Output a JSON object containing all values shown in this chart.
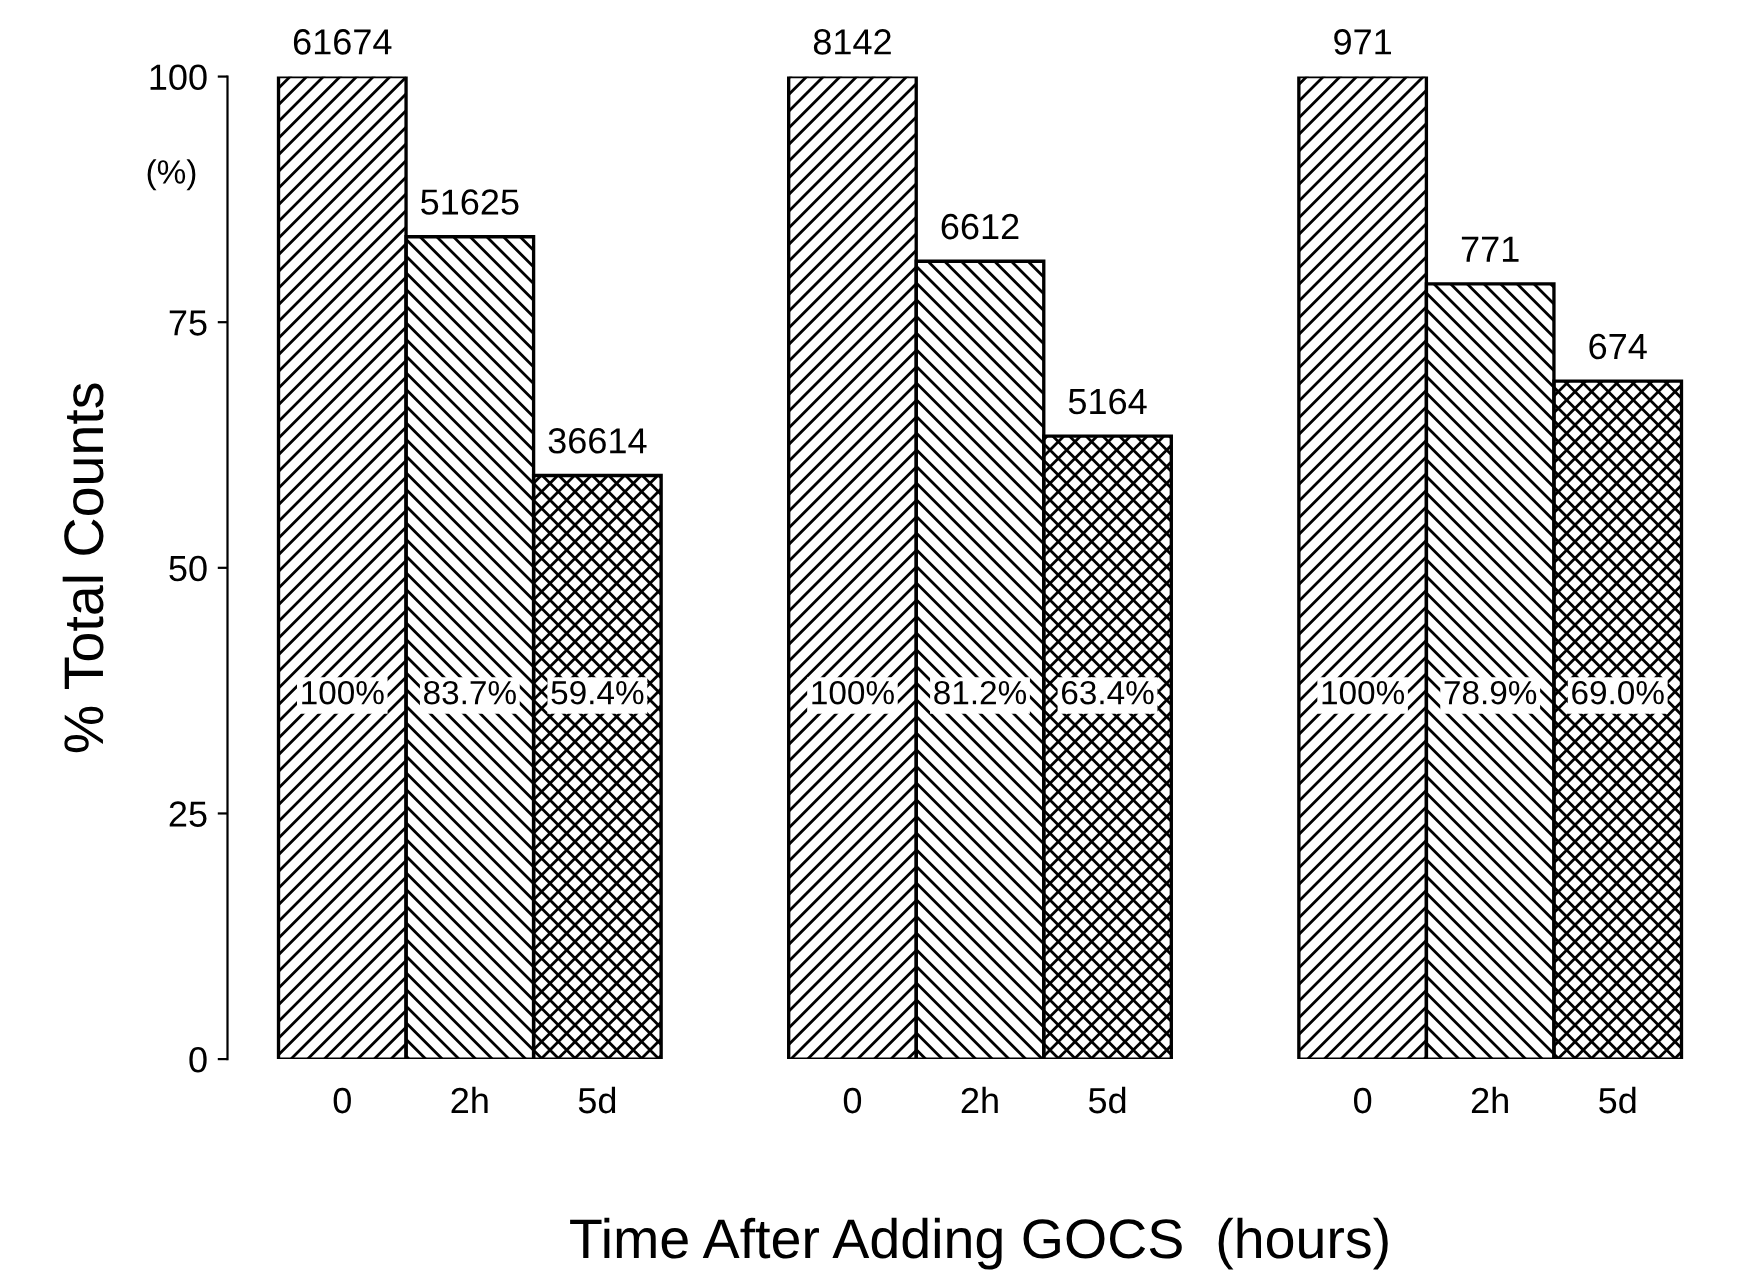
{
  "chart_data": {
    "type": "bar",
    "categories": [
      "0",
      "2h",
      "5d",
      null,
      "0",
      "2h",
      "5d",
      null,
      "0",
      "2h",
      "5d"
    ],
    "values": [
      100,
      83.7,
      59.4,
      null,
      100,
      81.2,
      63.4,
      null,
      100,
      78.9,
      69.0
    ],
    "value_labels": [
      "100%",
      "83.7%",
      "59.4%",
      null,
      "100%",
      "81.2%",
      "63.4%",
      null,
      "100%",
      "78.9%",
      "69.0%"
    ],
    "color": "#000000",
    "annotations": [
      "61674",
      "51625",
      "36614",
      "8142",
      "6612",
      "5164",
      "971",
      "771",
      "674",
      "(%)"
    ],
    "ylabel": "% Total Counts",
    "xlabel": "Time After Adding GOCS  (hours)",
    "ylim": [
      0,
      100
    ],
    "yticks": [
      0,
      25,
      50,
      75,
      100
    ],
    "grid": false,
    "legend": false
  }
}
